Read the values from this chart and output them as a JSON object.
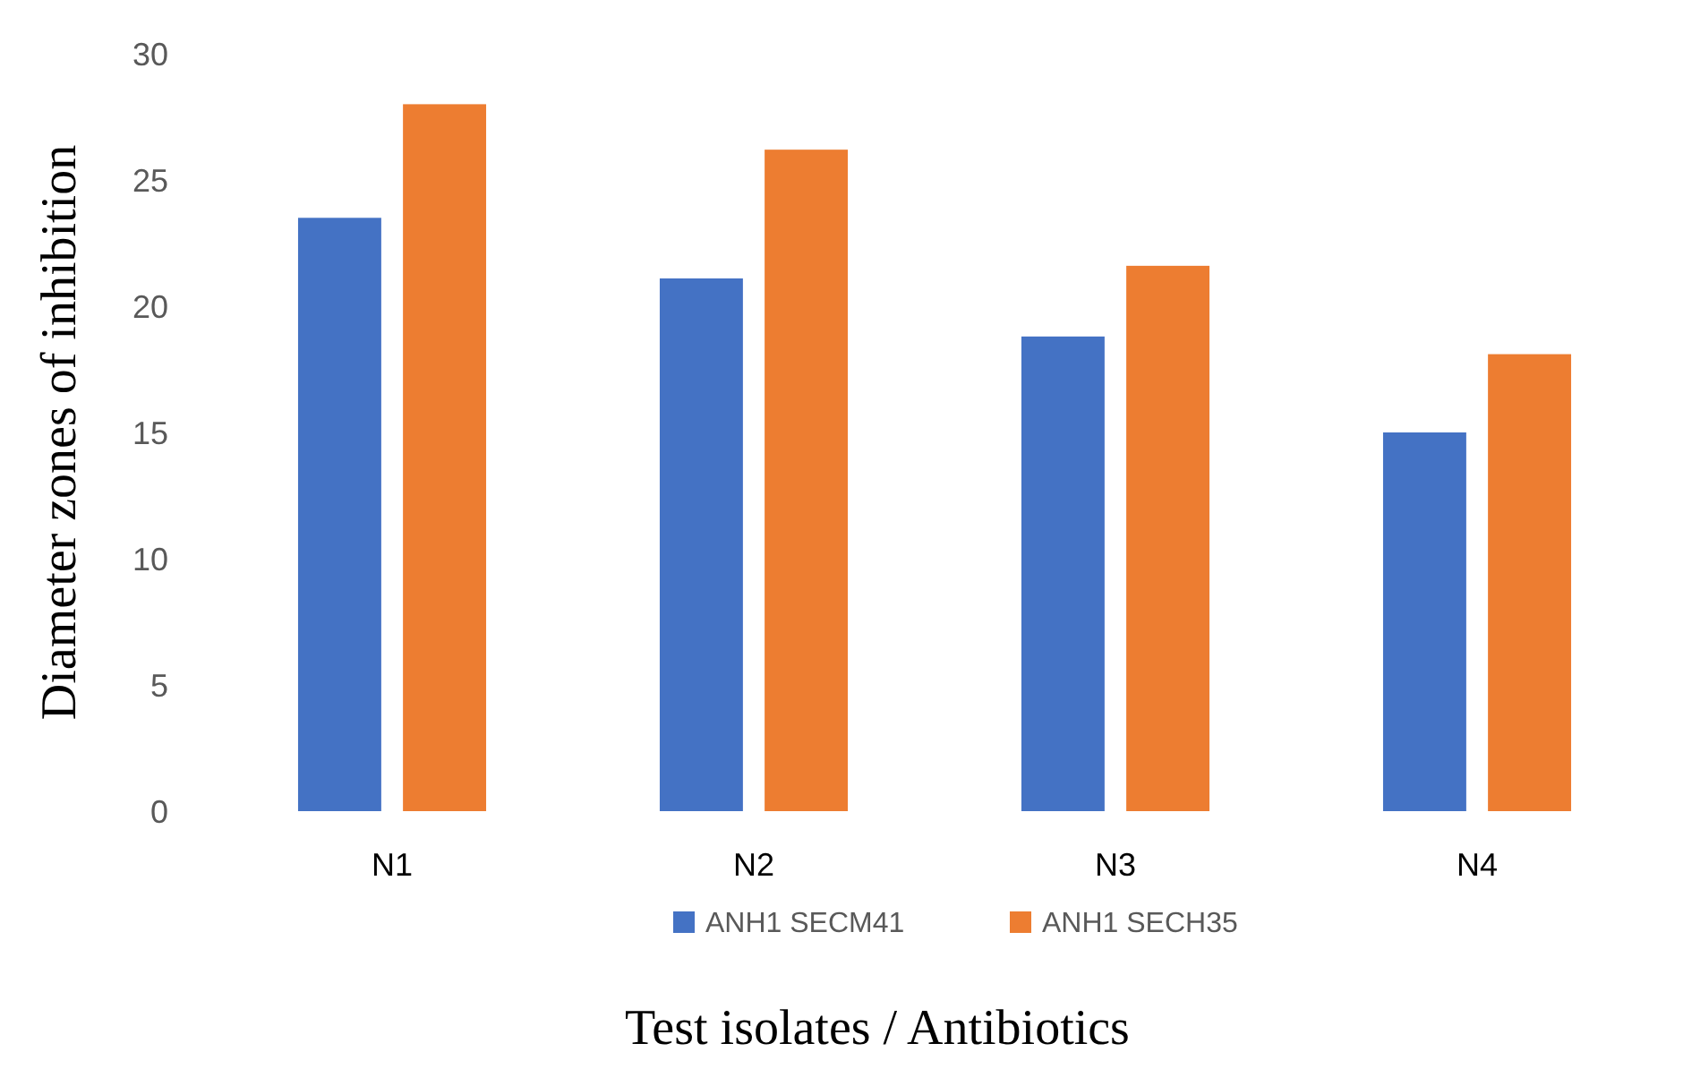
{
  "chart_data": {
    "type": "bar",
    "xlabel": "Test isolates / Antibiotics",
    "ylabel": "Diameter zones of inhibition",
    "categories": [
      "N1",
      "N2",
      "N3",
      "N4"
    ],
    "series": [
      {
        "name": "ANH1 SECM41",
        "color": "#4472c4",
        "values": [
          23.5,
          21.1,
          18.8,
          15.0
        ]
      },
      {
        "name": "ANH1 SECH35",
        "color": "#ed7d31",
        "values": [
          28.0,
          26.2,
          21.6,
          18.1
        ]
      }
    ],
    "ylim": [
      0,
      30
    ],
    "yticks": [
      0,
      5,
      10,
      15,
      20,
      25,
      30
    ],
    "grid": false,
    "legend": "bottom"
  }
}
